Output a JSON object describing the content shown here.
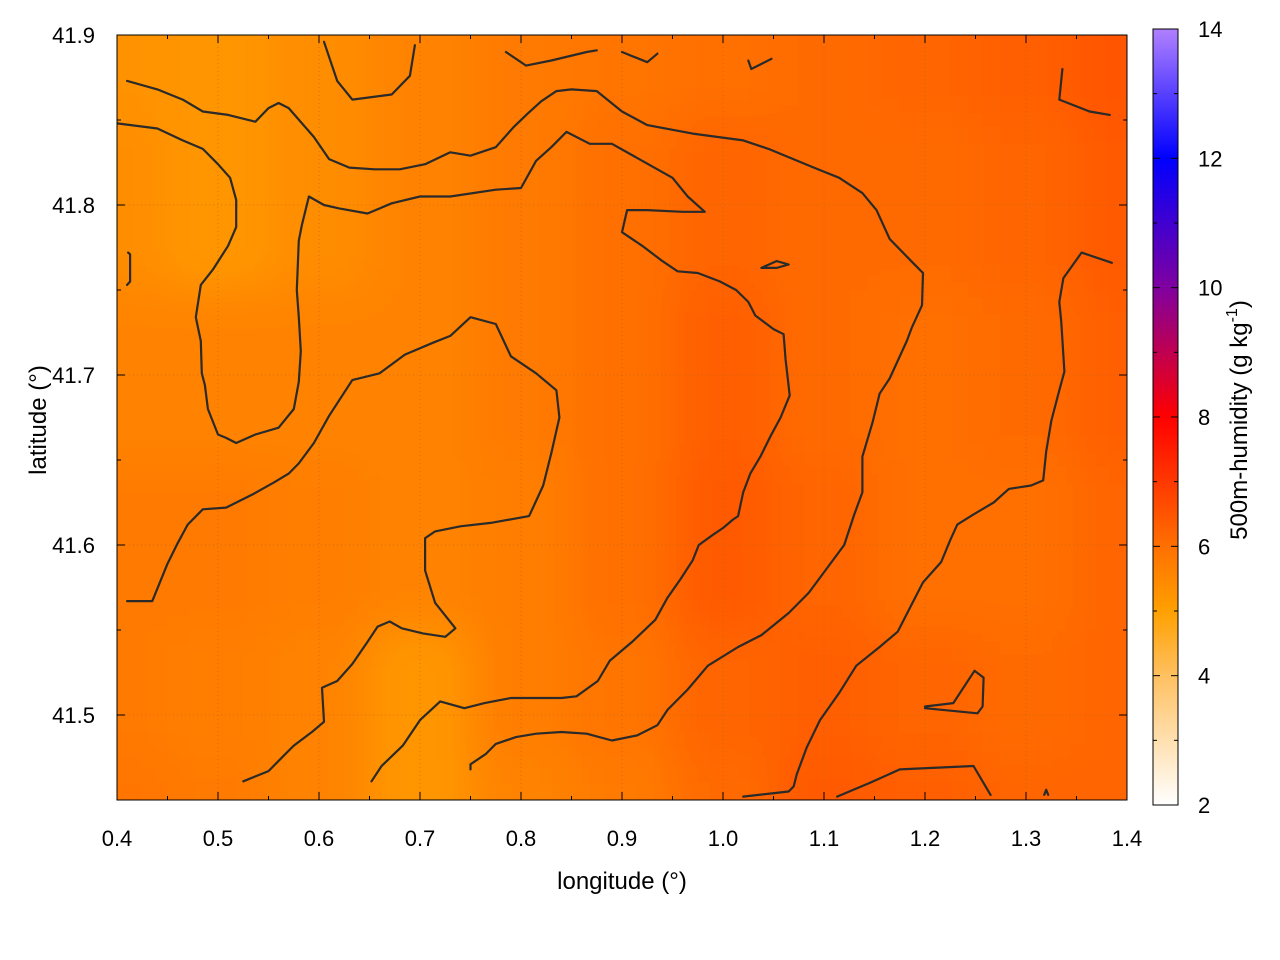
{
  "chart_data": {
    "type": "heatmap",
    "xlabel": "longitude (°)",
    "ylabel": "latitude (°)",
    "colorbar_label": "500m-humidity (g kg⁻¹)",
    "colorbar_label_base": "500m-humidity (g kg",
    "colorbar_label_sup": "-1",
    "colorbar_label_end": ")",
    "xlim": [
      0.4,
      1.4
    ],
    "ylim": [
      41.45,
      41.9
    ],
    "clim": [
      2,
      14
    ],
    "x_ticks": [
      0.4,
      0.5,
      0.6,
      0.7,
      0.8,
      0.9,
      1.0,
      1.1,
      1.2,
      1.3,
      1.4
    ],
    "x_tick_labels": [
      "0.4",
      "0.5",
      "0.6",
      "0.7",
      "0.8",
      "0.9",
      "1.0",
      "1.1",
      "1.2",
      "1.3",
      "1.4"
    ],
    "y_ticks": [
      41.5,
      41.6,
      41.7,
      41.8,
      41.9
    ],
    "y_tick_labels": [
      "41.5",
      "41.6",
      "41.7",
      "41.8",
      "41.9"
    ],
    "cb_ticks": [
      2,
      4,
      6,
      8,
      10,
      12,
      14
    ],
    "cb_tick_labels": [
      "2",
      "4",
      "6",
      "8",
      "10",
      "12",
      "14"
    ],
    "colormap": [
      {
        "value": 2,
        "color": "#ffffff"
      },
      {
        "value": 4,
        "color": "#ffc060"
      },
      {
        "value": 5,
        "color": "#ffa000"
      },
      {
        "value": 6,
        "color": "#ff7000"
      },
      {
        "value": 8,
        "color": "#ff0000"
      },
      {
        "value": 10,
        "color": "#8000a0"
      },
      {
        "value": 12,
        "color": "#0000ff"
      },
      {
        "value": 14,
        "color": "#b080ff"
      }
    ],
    "grid": true,
    "field_grid": {
      "x": [
        0.4,
        0.5,
        0.6,
        0.7,
        0.8,
        0.9,
        1.0,
        1.1,
        1.2,
        1.3,
        1.4
      ],
      "y": [
        41.9,
        41.8,
        41.7,
        41.6,
        41.5,
        41.45
      ],
      "values": [
        [
          5.3,
          5.2,
          5.4,
          5.6,
          5.8,
          5.9,
          6.0,
          6.1,
          6.2,
          6.3,
          6.5
        ],
        [
          5.4,
          5.2,
          5.4,
          5.6,
          5.8,
          6.0,
          6.2,
          6.1,
          6.1,
          6.2,
          6.4
        ],
        [
          5.6,
          5.6,
          5.6,
          5.6,
          5.8,
          6.0,
          6.3,
          6.1,
          6.0,
          6.1,
          6.3
        ],
        [
          5.8,
          5.8,
          5.7,
          5.6,
          5.7,
          6.0,
          6.4,
          6.2,
          6.0,
          6.0,
          6.2
        ],
        [
          5.8,
          5.7,
          5.6,
          5.2,
          5.7,
          5.9,
          6.2,
          6.3,
          6.2,
          6.1,
          6.2
        ],
        [
          5.9,
          5.8,
          5.6,
          5.2,
          5.6,
          5.8,
          6.1,
          6.4,
          6.3,
          6.2,
          6.2
        ]
      ]
    },
    "contours": [
      [
        [
          0.41,
          41.873
        ],
        [
          0.44,
          41.868
        ],
        [
          0.465,
          41.862
        ],
        [
          0.485,
          41.855
        ],
        [
          0.51,
          41.853
        ],
        [
          0.537,
          41.849
        ],
        [
          0.55,
          41.857
        ],
        [
          0.56,
          41.86
        ],
        [
          0.57,
          41.857
        ],
        [
          0.595,
          41.84
        ],
        [
          0.61,
          41.827
        ],
        [
          0.63,
          41.822
        ],
        [
          0.655,
          41.821
        ],
        [
          0.68,
          41.821
        ],
        [
          0.705,
          41.824
        ],
        [
          0.73,
          41.831
        ],
        [
          0.75,
          41.829
        ],
        [
          0.775,
          41.834
        ],
        [
          0.793,
          41.846
        ],
        [
          0.807,
          41.854
        ],
        [
          0.82,
          41.861
        ],
        [
          0.835,
          41.867
        ],
        [
          0.85,
          41.868
        ],
        [
          0.875,
          41.867
        ],
        [
          0.9,
          41.855
        ],
        [
          0.925,
          41.847
        ],
        [
          0.97,
          41.842
        ],
        [
          1.02,
          41.838
        ],
        [
          1.045,
          41.833
        ],
        [
          1.09,
          41.822
        ],
        [
          1.115,
          41.816
        ],
        [
          1.138,
          41.807
        ],
        [
          1.152,
          41.797
        ],
        [
          1.165,
          41.78
        ],
        [
          1.188,
          41.766
        ],
        [
          1.198,
          41.76
        ],
        [
          1.197,
          41.741
        ],
        [
          1.187,
          41.728
        ],
        [
          1.182,
          41.72
        ],
        [
          1.165,
          41.698
        ],
        [
          1.155,
          41.689
        ],
        [
          1.148,
          41.672
        ],
        [
          1.138,
          41.652
        ],
        [
          1.138,
          41.631
        ],
        [
          1.13,
          41.618
        ],
        [
          1.12,
          41.6
        ],
        [
          1.105,
          41.588
        ],
        [
          1.085,
          41.572
        ],
        [
          1.065,
          41.56
        ],
        [
          1.038,
          41.547
        ],
        [
          1.015,
          41.54
        ],
        [
          0.985,
          41.529
        ],
        [
          0.965,
          41.515
        ],
        [
          0.945,
          41.503
        ],
        [
          0.935,
          41.494
        ],
        [
          0.915,
          41.488
        ],
        [
          0.89,
          41.485
        ],
        [
          0.865,
          41.489
        ],
        [
          0.84,
          41.49
        ],
        [
          0.815,
          41.489
        ],
        [
          0.795,
          41.487
        ],
        [
          0.775,
          41.483
        ],
        [
          0.765,
          41.477
        ],
        [
          0.75,
          41.471
        ],
        [
          0.75,
          41.468
        ]
      ],
      [
        [
          0.4,
          41.848
        ],
        [
          0.44,
          41.845
        ],
        [
          0.465,
          41.838
        ],
        [
          0.485,
          41.833
        ],
        [
          0.5,
          41.824
        ],
        [
          0.512,
          41.816
        ],
        [
          0.518,
          41.803
        ],
        [
          0.518,
          41.787
        ],
        [
          0.51,
          41.776
        ],
        [
          0.495,
          41.762
        ],
        [
          0.483,
          41.753
        ],
        [
          0.478,
          41.734
        ],
        [
          0.483,
          41.72
        ],
        [
          0.484,
          41.701
        ],
        [
          0.487,
          41.694
        ],
        [
          0.49,
          41.68
        ],
        [
          0.5,
          41.665
        ],
        [
          0.508,
          41.663
        ],
        [
          0.518,
          41.66
        ],
        [
          0.537,
          41.665
        ],
        [
          0.56,
          41.669
        ],
        [
          0.575,
          41.68
        ],
        [
          0.58,
          41.696
        ],
        [
          0.582,
          41.714
        ],
        [
          0.58,
          41.734
        ],
        [
          0.578,
          41.75
        ],
        [
          0.58,
          41.779
        ],
        [
          0.583,
          41.788
        ],
        [
          0.59,
          41.805
        ],
        [
          0.605,
          41.8
        ],
        [
          0.62,
          41.798
        ],
        [
          0.648,
          41.795
        ],
        [
          0.672,
          41.801
        ],
        [
          0.7,
          41.805
        ],
        [
          0.73,
          41.805
        ],
        [
          0.775,
          41.809
        ],
        [
          0.8,
          41.81
        ],
        [
          0.815,
          41.826
        ],
        [
          0.83,
          41.834
        ],
        [
          0.845,
          41.843
        ],
        [
          0.868,
          41.836
        ],
        [
          0.89,
          41.836
        ],
        [
          0.92,
          41.826
        ],
        [
          0.95,
          41.816
        ],
        [
          0.965,
          41.805
        ],
        [
          0.982,
          41.796
        ],
        [
          0.96,
          41.796
        ],
        [
          0.925,
          41.797
        ],
        [
          0.905,
          41.797
        ],
        [
          0.9,
          41.784
        ],
        [
          0.92,
          41.776
        ],
        [
          0.94,
          41.767
        ],
        [
          0.955,
          41.761
        ],
        [
          0.975,
          41.76
        ],
        [
          0.997,
          41.755
        ],
        [
          1.013,
          41.75
        ],
        [
          1.025,
          41.743
        ],
        [
          1.032,
          41.735
        ],
        [
          1.05,
          41.727
        ],
        [
          1.06,
          41.724
        ],
        [
          1.062,
          41.709
        ],
        [
          1.066,
          41.688
        ],
        [
          1.057,
          41.675
        ],
        [
          1.047,
          41.664
        ],
        [
          1.037,
          41.652
        ],
        [
          1.027,
          41.642
        ],
        [
          1.02,
          41.631
        ],
        [
          1.015,
          41.617
        ],
        [
          1.01,
          41.615
        ],
        [
          1.0,
          41.61
        ],
        [
          0.99,
          41.606
        ],
        [
          0.976,
          41.6
        ],
        [
          0.97,
          41.591
        ],
        [
          0.958,
          41.58
        ],
        [
          0.945,
          41.569
        ],
        [
          0.933,
          41.556
        ],
        [
          0.91,
          41.543
        ],
        [
          0.888,
          41.532
        ],
        [
          0.876,
          41.52
        ],
        [
          0.855,
          41.511
        ],
        [
          0.84,
          41.51
        ],
        [
          0.79,
          41.51
        ],
        [
          0.764,
          41.507
        ],
        [
          0.744,
          41.504
        ],
        [
          0.72,
          41.508
        ],
        [
          0.7,
          41.497
        ],
        [
          0.683,
          41.482
        ],
        [
          0.662,
          41.47
        ],
        [
          0.652,
          41.461
        ]
      ],
      [
        [
          0.41,
          41.567
        ],
        [
          0.435,
          41.567
        ],
        [
          0.45,
          41.589
        ],
        [
          0.46,
          41.601
        ],
        [
          0.47,
          41.612
        ],
        [
          0.485,
          41.621
        ],
        [
          0.508,
          41.622
        ],
        [
          0.535,
          41.63
        ],
        [
          0.556,
          41.637
        ],
        [
          0.57,
          41.642
        ],
        [
          0.58,
          41.648
        ],
        [
          0.595,
          41.66
        ],
        [
          0.61,
          41.676
        ],
        [
          0.633,
          41.697
        ],
        [
          0.66,
          41.701
        ],
        [
          0.685,
          41.712
        ],
        [
          0.713,
          41.719
        ],
        [
          0.73,
          41.723
        ],
        [
          0.75,
          41.734
        ],
        [
          0.775,
          41.73
        ],
        [
          0.79,
          41.711
        ],
        [
          0.815,
          41.701
        ],
        [
          0.835,
          41.691
        ],
        [
          0.838,
          41.675
        ],
        [
          0.83,
          41.654
        ],
        [
          0.822,
          41.635
        ],
        [
          0.808,
          41.617
        ],
        [
          0.77,
          41.613
        ],
        [
          0.74,
          41.611
        ],
        [
          0.715,
          41.608
        ],
        [
          0.705,
          41.604
        ],
        [
          0.705,
          41.585
        ],
        [
          0.715,
          41.566
        ],
        [
          0.735,
          41.551
        ],
        [
          0.725,
          41.546
        ],
        [
          0.703,
          41.548
        ],
        [
          0.682,
          41.551
        ],
        [
          0.67,
          41.555
        ],
        [
          0.658,
          41.552
        ],
        [
          0.648,
          41.543
        ],
        [
          0.633,
          41.53
        ],
        [
          0.618,
          41.52
        ],
        [
          0.603,
          41.516
        ],
        [
          0.605,
          41.496
        ],
        [
          0.593,
          41.49
        ],
        [
          0.575,
          41.482
        ],
        [
          0.565,
          41.476
        ],
        [
          0.55,
          41.467
        ],
        [
          0.525,
          41.461
        ]
      ],
      [
        [
          0.605,
          41.896
        ],
        [
          0.618,
          41.873
        ],
        [
          0.633,
          41.862
        ],
        [
          0.672,
          41.865
        ],
        [
          0.69,
          41.876
        ],
        [
          0.695,
          41.894
        ]
      ],
      [
        [
          0.785,
          41.89
        ],
        [
          0.805,
          41.882
        ],
        [
          0.83,
          41.885
        ],
        [
          0.865,
          41.89
        ],
        [
          0.875,
          41.891
        ]
      ],
      [
        [
          0.9,
          41.89
        ],
        [
          0.925,
          41.884
        ],
        [
          0.935,
          41.889
        ]
      ],
      [
        [
          1.025,
          41.885
        ],
        [
          1.028,
          41.88
        ],
        [
          1.048,
          41.886
        ]
      ],
      [
        [
          1.336,
          41.88
        ],
        [
          1.333,
          41.862
        ],
        [
          1.363,
          41.855
        ],
        [
          1.383,
          41.853
        ]
      ],
      [
        [
          1.038,
          41.763
        ],
        [
          1.053,
          41.767
        ],
        [
          1.065,
          41.765
        ],
        [
          1.053,
          41.763
        ],
        [
          1.038,
          41.763
        ]
      ],
      [
        [
          0.411,
          41.772
        ],
        [
          0.413,
          41.771
        ],
        [
          0.413,
          41.755
        ],
        [
          0.41,
          41.753
        ]
      ],
      [
        [
          1.385,
          41.766
        ],
        [
          1.355,
          41.772
        ],
        [
          1.337,
          41.757
        ],
        [
          1.333,
          41.743
        ],
        [
          1.335,
          41.731
        ],
        [
          1.338,
          41.702
        ],
        [
          1.333,
          41.691
        ],
        [
          1.325,
          41.673
        ],
        [
          1.32,
          41.655
        ],
        [
          1.317,
          41.638
        ],
        [
          1.305,
          41.635
        ],
        [
          1.283,
          41.633
        ],
        [
          1.268,
          41.625
        ],
        [
          1.248,
          41.618
        ],
        [
          1.232,
          41.612
        ],
        [
          1.225,
          41.603
        ],
        [
          1.216,
          41.59
        ],
        [
          1.198,
          41.578
        ],
        [
          1.185,
          41.563
        ],
        [
          1.173,
          41.549
        ],
        [
          1.155,
          41.54
        ],
        [
          1.132,
          41.529
        ],
        [
          1.115,
          41.513
        ],
        [
          1.096,
          41.497
        ],
        [
          1.083,
          41.481
        ],
        [
          1.073,
          41.465
        ],
        [
          1.07,
          41.458
        ],
        [
          1.065,
          41.455
        ],
        [
          1.02,
          41.452
        ]
      ],
      [
        [
          1.2,
          41.505
        ],
        [
          1.228,
          41.507
        ],
        [
          1.249,
          41.526
        ],
        [
          1.258,
          41.522
        ],
        [
          1.257,
          41.505
        ],
        [
          1.252,
          41.501
        ],
        [
          1.2,
          41.504
        ]
      ],
      [
        [
          1.113,
          41.452
        ],
        [
          1.145,
          41.46
        ],
        [
          1.175,
          41.468
        ],
        [
          1.248,
          41.47
        ],
        [
          1.265,
          41.453
        ]
      ],
      [
        [
          1.318,
          41.453
        ],
        [
          1.32,
          41.456
        ],
        [
          1.322,
          41.453
        ]
      ]
    ]
  }
}
